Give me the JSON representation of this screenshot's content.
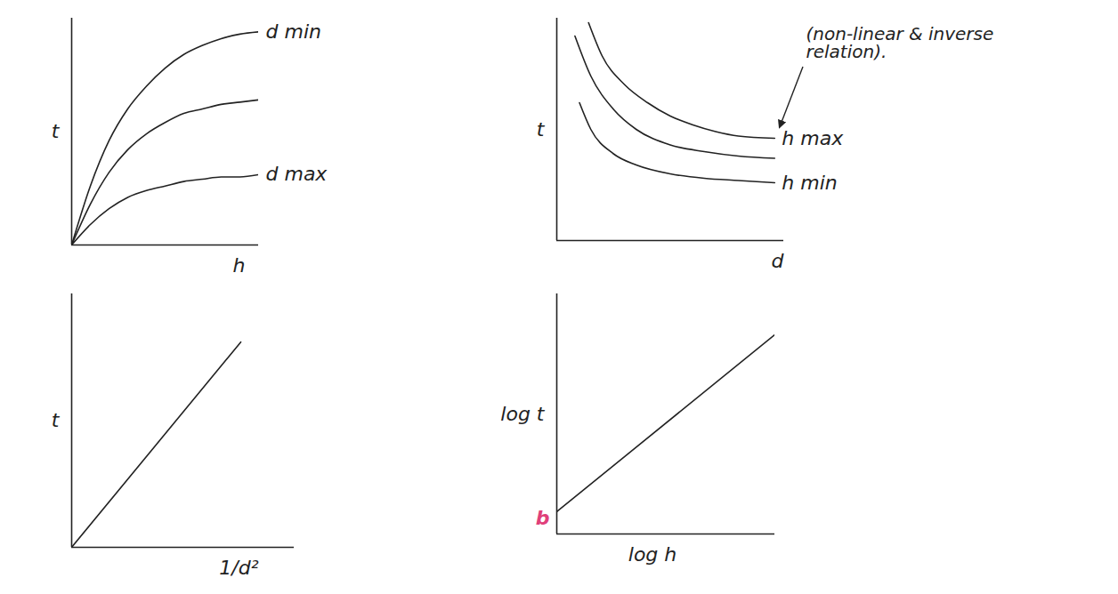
{
  "chart_data": [
    {
      "type": "line",
      "x_label": "h",
      "y_label": "t",
      "xlim": [
        0,
        10
      ],
      "ylim": [
        0,
        10
      ],
      "tick_labels": false,
      "series": [
        {
          "name": "d min",
          "color": "#222222",
          "x": [
            0,
            1,
            2,
            3,
            4,
            5,
            6,
            7,
            8,
            9,
            10
          ],
          "values": [
            0,
            2.6,
            4.6,
            6.0,
            7.0,
            7.8,
            8.4,
            8.8,
            9.1,
            9.3,
            9.4
          ]
        },
        {
          "name": null,
          "color": "#222222",
          "x": [
            0,
            1,
            2,
            3,
            4,
            5,
            6,
            7,
            8,
            9,
            10
          ],
          "values": [
            0,
            1.8,
            3.2,
            4.2,
            4.9,
            5.4,
            5.8,
            6.0,
            6.2,
            6.3,
            6.4
          ]
        },
        {
          "name": "d max",
          "color": "#222222",
          "x": [
            0,
            1,
            2,
            3,
            4,
            5,
            6,
            7,
            8,
            9,
            10
          ],
          "values": [
            0,
            0.9,
            1.6,
            2.1,
            2.4,
            2.6,
            2.8,
            2.9,
            3.0,
            3.0,
            3.1
          ]
        }
      ]
    },
    {
      "type": "line",
      "x_label": "d",
      "y_label": "t",
      "xlim": [
        0,
        10
      ],
      "ylim": [
        0,
        10
      ],
      "tick_labels": false,
      "series": [
        {
          "name": "h max",
          "color": "#222222",
          "x": [
            1.4,
            2,
            3,
            4,
            5,
            6,
            7,
            8,
            9.6
          ],
          "values": [
            9.8,
            8.3,
            7.0,
            6.2,
            5.6,
            5.2,
            4.9,
            4.7,
            4.6
          ]
        },
        {
          "name": null,
          "color": "#222222",
          "x": [
            0.8,
            1.5,
            2.5,
            3.5,
            5,
            6.5,
            8,
            9.6
          ],
          "values": [
            9.2,
            7.4,
            5.9,
            5.0,
            4.3,
            4.0,
            3.8,
            3.7
          ]
        },
        {
          "name": "h min",
          "color": "#222222",
          "x": [
            1.0,
            1.5,
            2.5,
            3.5,
            5,
            6.5,
            8,
            9.6
          ],
          "values": [
            6.2,
            5.0,
            3.9,
            3.4,
            3.0,
            2.8,
            2.7,
            2.6
          ]
        }
      ],
      "annotations": [
        {
          "text": "(non-linear & inverse relation).",
          "color": "#222222"
        }
      ]
    },
    {
      "type": "line",
      "x_label": "1/d²",
      "y_label": "t",
      "xlim": [
        0,
        10
      ],
      "ylim": [
        0,
        10
      ],
      "tick_labels": false,
      "series": [
        {
          "name": null,
          "color": "#222222",
          "x": [
            0,
            7.6
          ],
          "values": [
            0,
            8.1
          ]
        }
      ]
    },
    {
      "type": "line",
      "x_label": "log h",
      "y_label": "log t",
      "xlim": [
        0,
        10
      ],
      "ylim": [
        0,
        10
      ],
      "tick_labels": false,
      "series": [
        {
          "name": null,
          "color": "#222222",
          "x": [
            0,
            10
          ],
          "values": [
            0.93,
            8.3
          ]
        }
      ],
      "annotations": [
        {
          "text": "b",
          "x": 0,
          "y": 0.93,
          "color": "#e0407a"
        }
      ]
    }
  ]
}
